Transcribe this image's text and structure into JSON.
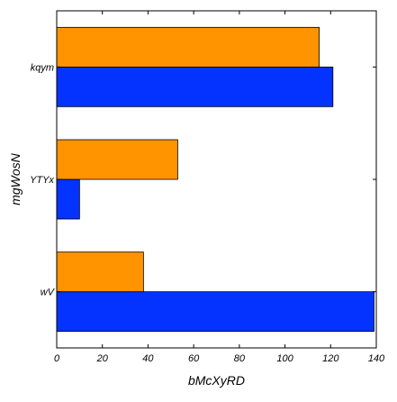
{
  "chart_data": {
    "type": "bar",
    "orientation": "horizontal",
    "categories": [
      "wV",
      "YTYx",
      "kqym"
    ],
    "series": [
      {
        "color": "#0433ff",
        "values": [
          139,
          10,
          121
        ]
      },
      {
        "color": "#ff9300",
        "values": [
          38,
          53,
          115
        ]
      }
    ],
    "xlabel": "bMcXyRD",
    "ylabel": "mgWosN",
    "xlim": [
      0,
      140
    ],
    "xticks": [
      0,
      20,
      40,
      60,
      80,
      100,
      120,
      140
    ],
    "grid": false,
    "legend": "none"
  }
}
